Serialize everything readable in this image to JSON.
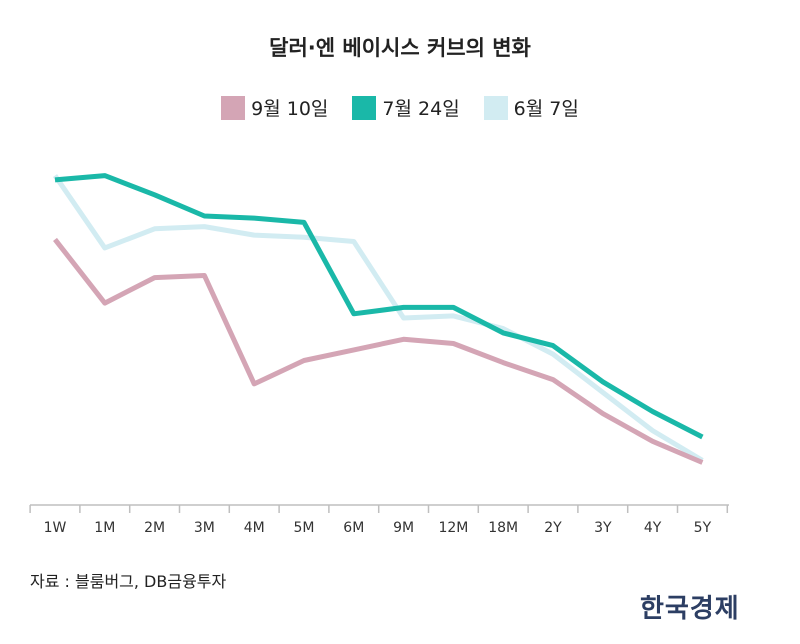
{
  "chart_data": {
    "type": "line",
    "title": "달러·엔 베이시스 커브의 변화",
    "categories": [
      "1W",
      "1M",
      "2M",
      "3M",
      "4M",
      "5M",
      "6M",
      "9M",
      "12M",
      "18M",
      "2Y",
      "3Y",
      "4Y",
      "5Y"
    ],
    "series": [
      {
        "name": "9월 10일",
        "color": "#d4a5b5",
        "values": [
          -30,
          -60,
          -48,
          -47,
          -98,
          -87,
          -82,
          -77,
          -79,
          -88,
          -96,
          -112,
          -125,
          -135
        ]
      },
      {
        "name": "7월 24일",
        "color": "#1ab8a8",
        "values": [
          -2,
          0,
          -9,
          -19,
          -20,
          -22,
          -65,
          -62,
          -62,
          -74,
          -80,
          -97,
          -111,
          -123
        ]
      },
      {
        "name": "6월 7일",
        "color": "#d2ecf2",
        "values": [
          0,
          -34,
          -25,
          -24,
          -28,
          -29,
          -31,
          -67,
          -66,
          -72,
          -84,
          -102,
          -120,
          -134
        ]
      }
    ],
    "ylim": [
      -155,
      5
    ],
    "xlabel": "",
    "ylabel": "",
    "grid": false,
    "legend_position": "top-center"
  },
  "source_note": "자료 : 블룸버그, DB금융투자",
  "brand": "한국경제"
}
